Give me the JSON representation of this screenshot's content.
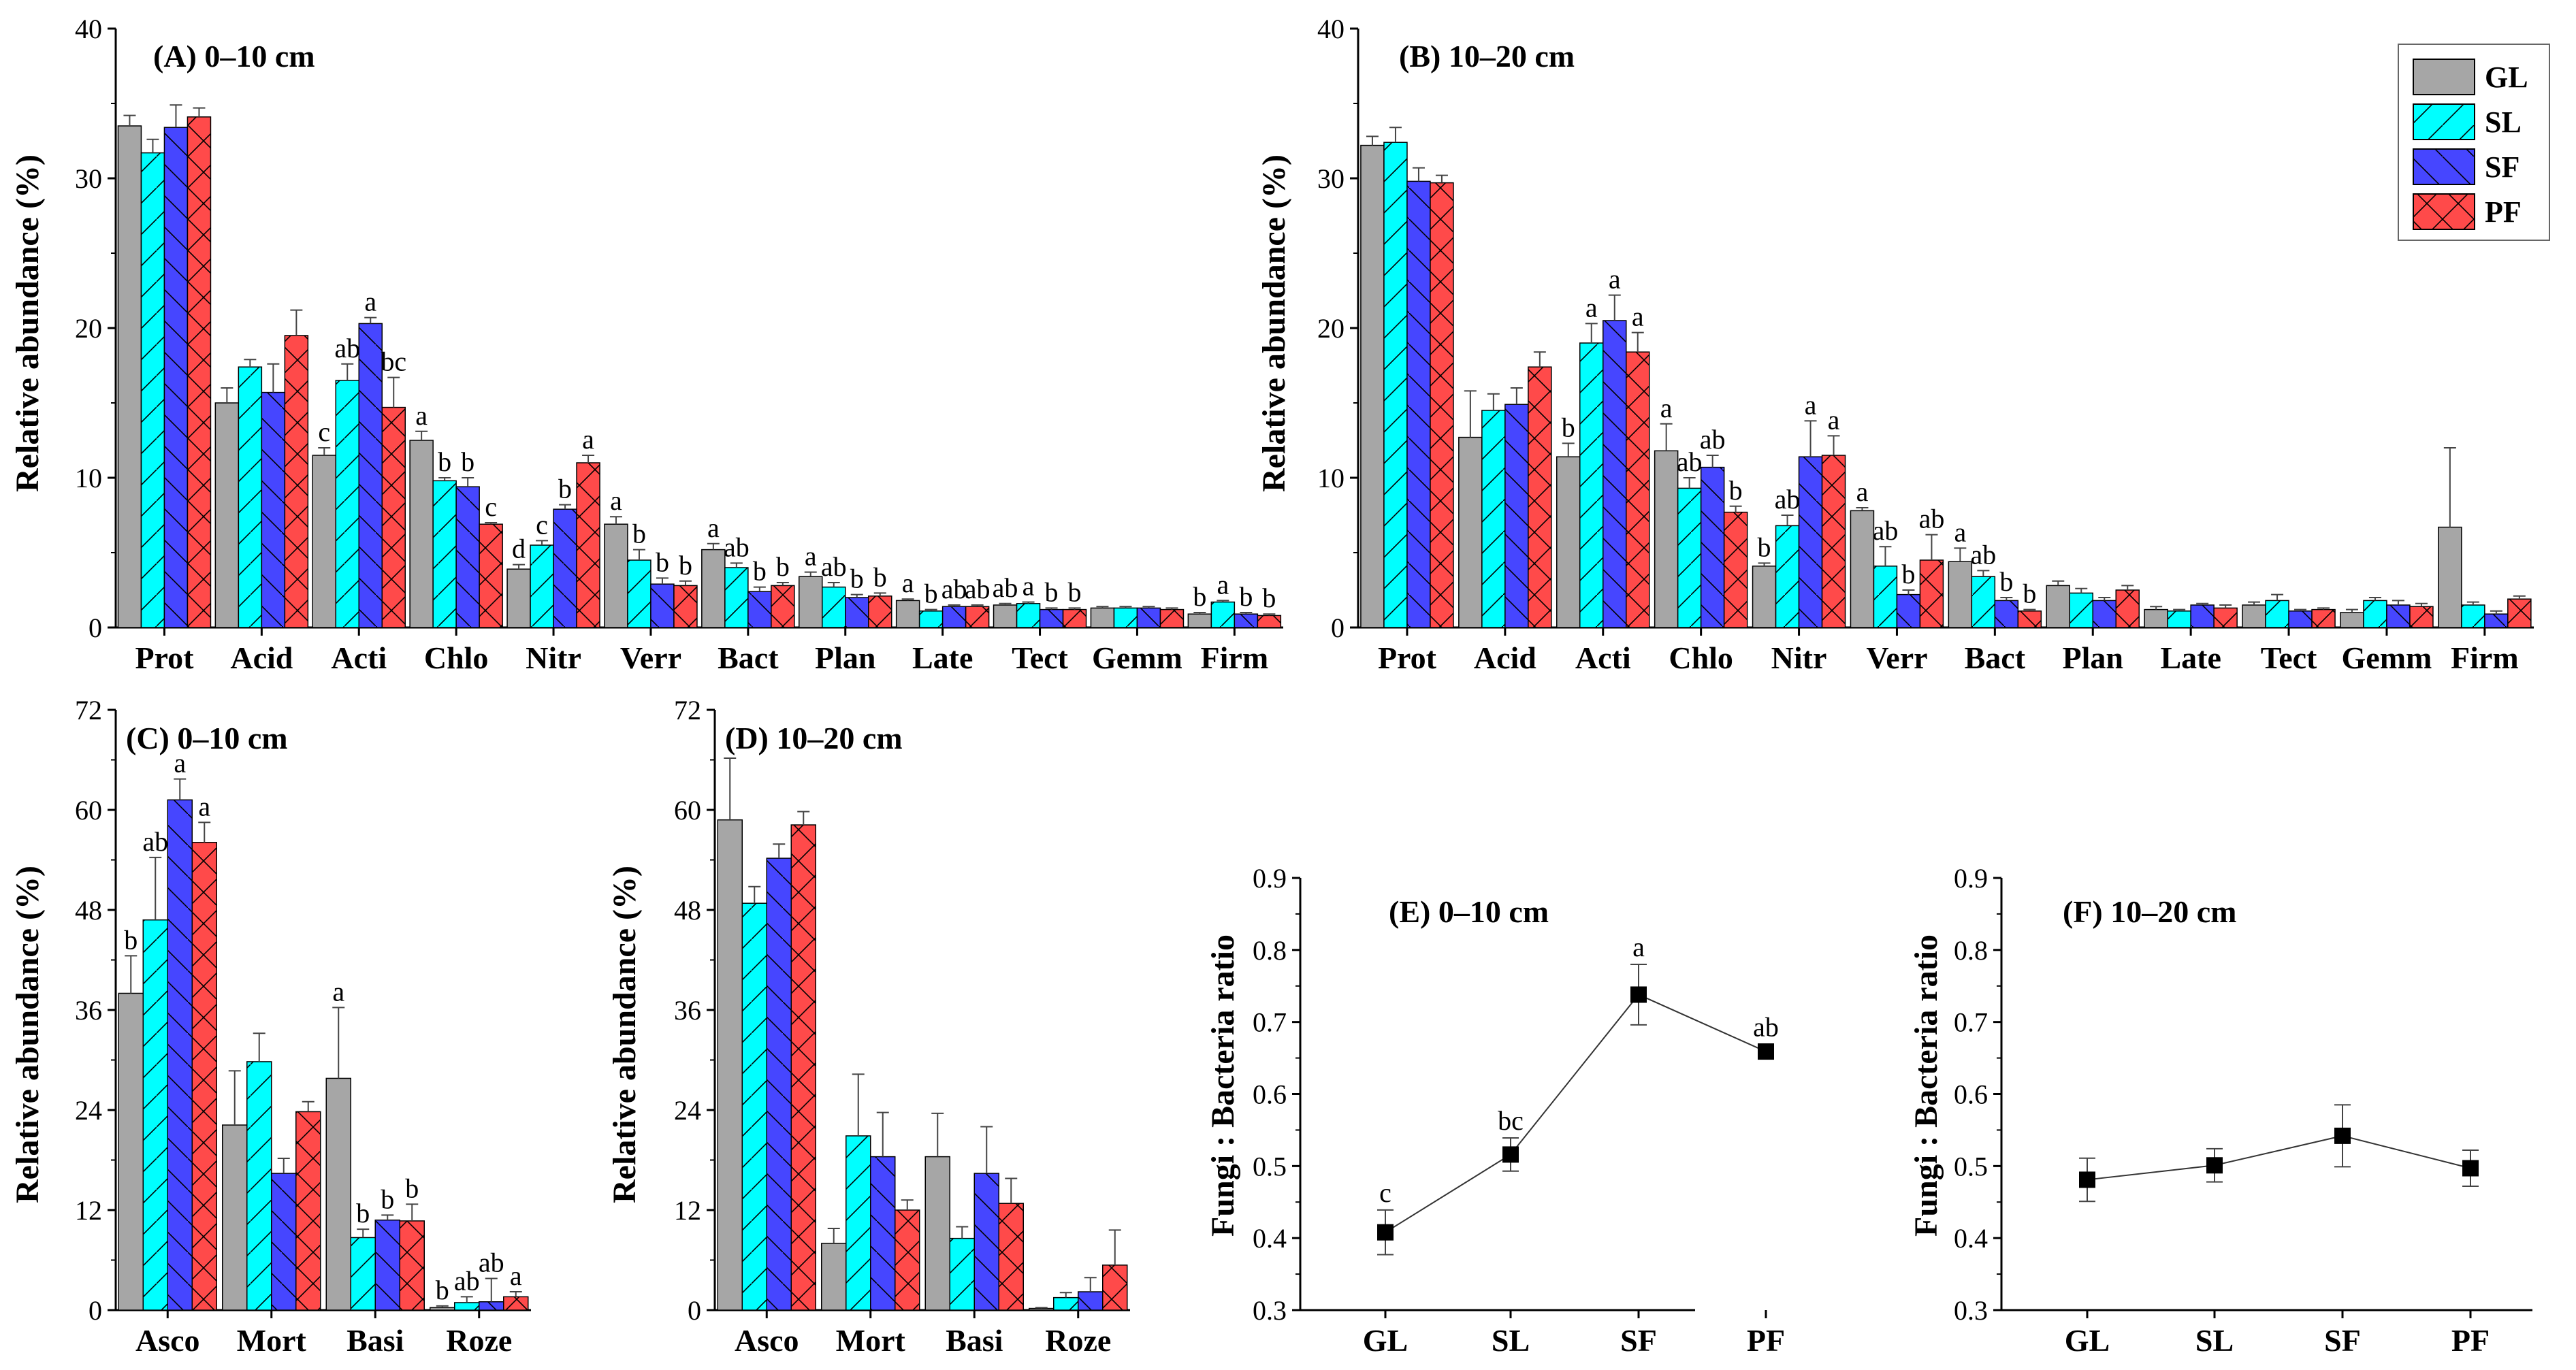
{
  "colors": {
    "GL": "#a6a6a6",
    "SL": "#00ffff",
    "SF": "#4646ff",
    "PF": "#ff4a4a",
    "axis": "#000000",
    "error": "#444444"
  },
  "legend": {
    "items": [
      "GL",
      "SL",
      "SF",
      "PF"
    ]
  },
  "chart_data": [
    {
      "id": "A",
      "type": "bar",
      "title": "(A) 0–10 cm",
      "ylabel": "Relative abundance (%)",
      "xlabel": "",
      "ylim": [
        0,
        40
      ],
      "yticks": [
        "0",
        "10",
        "20",
        "30",
        "40"
      ],
      "categories": [
        "Prot",
        "Acid",
        "Acti",
        "Chlo",
        "Nitr",
        "Verr",
        "Bact",
        "Plan",
        "Late",
        "Tect",
        "Gemm",
        "Firm"
      ],
      "series": [
        {
          "name": "GL",
          "values": [
            33.5,
            15.0,
            11.5,
            12.5,
            3.9,
            6.9,
            5.2,
            3.4,
            1.8,
            1.5,
            1.3,
            0.9
          ],
          "errors": [
            0.7,
            1.0,
            0.5,
            0.6,
            0.3,
            0.5,
            0.4,
            0.3,
            0.1,
            0.1,
            0.1,
            0.1
          ]
        },
        {
          "name": "SL",
          "values": [
            31.7,
            17.4,
            16.5,
            9.8,
            5.5,
            4.5,
            4.0,
            2.7,
            1.1,
            1.6,
            1.3,
            1.7
          ],
          "errors": [
            0.9,
            0.5,
            1.1,
            0.2,
            0.3,
            0.7,
            0.3,
            0.3,
            0.1,
            0.1,
            0.1,
            0.1
          ]
        },
        {
          "name": "SF",
          "values": [
            33.4,
            15.7,
            20.3,
            9.4,
            7.9,
            2.9,
            2.4,
            2.0,
            1.4,
            1.2,
            1.3,
            0.9
          ],
          "errors": [
            1.5,
            1.9,
            0.4,
            0.6,
            0.3,
            0.4,
            0.3,
            0.2,
            0.1,
            0.1,
            0.1,
            0.1
          ]
        },
        {
          "name": "PF",
          "values": [
            34.1,
            19.5,
            14.7,
            6.9,
            11.0,
            2.8,
            2.8,
            2.1,
            1.4,
            1.2,
            1.2,
            0.8
          ],
          "errors": [
            0.6,
            1.7,
            2.0,
            0.1,
            0.5,
            0.3,
            0.2,
            0.2,
            0.1,
            0.1,
            0.1,
            0.1
          ]
        }
      ],
      "letters": [
        [
          "",
          "",
          "",
          ""
        ],
        [
          "",
          "",
          "",
          ""
        ],
        [
          "c",
          "ab",
          "a",
          "bc"
        ],
        [
          "a",
          "b",
          "b",
          "c"
        ],
        [
          "d",
          "c",
          "b",
          "a"
        ],
        [
          "a",
          "b",
          "b",
          "b"
        ],
        [
          "a",
          "ab",
          "b",
          "b"
        ],
        [
          "a",
          "ab",
          "b",
          "b"
        ],
        [
          "a",
          "b",
          "ab",
          "ab"
        ],
        [
          "ab",
          "a",
          "b",
          "b"
        ],
        [
          "",
          "",
          "",
          ""
        ],
        [
          "b",
          "a",
          "b",
          "b"
        ]
      ]
    },
    {
      "id": "B",
      "type": "bar",
      "title": "(B) 10–20 cm",
      "ylabel": "Relative abundance (%)",
      "xlabel": "",
      "ylim": [
        0,
        40
      ],
      "yticks": [
        "0",
        "10",
        "20",
        "30",
        "40"
      ],
      "categories": [
        "Prot",
        "Acid",
        "Acti",
        "Chlo",
        "Nitr",
        "Verr",
        "Bact",
        "Plan",
        "Late",
        "Tect",
        "Gemm",
        "Firm"
      ],
      "series": [
        {
          "name": "GL",
          "values": [
            32.2,
            12.7,
            11.4,
            11.8,
            4.1,
            7.8,
            4.4,
            2.8,
            1.2,
            1.5,
            1.0,
            6.7
          ],
          "errors": [
            0.6,
            3.1,
            0.9,
            1.8,
            0.2,
            0.2,
            0.9,
            0.3,
            0.2,
            0.2,
            0.2,
            5.3
          ]
        },
        {
          "name": "SL",
          "values": [
            32.4,
            14.5,
            19.0,
            9.3,
            6.8,
            4.1,
            3.4,
            2.3,
            1.1,
            1.8,
            1.8,
            1.5
          ],
          "errors": [
            1.0,
            1.1,
            1.3,
            0.7,
            0.7,
            1.3,
            0.4,
            0.3,
            0.1,
            0.4,
            0.2,
            0.2
          ]
        },
        {
          "name": "SF",
          "values": [
            29.8,
            14.9,
            20.5,
            10.7,
            11.4,
            2.2,
            1.8,
            1.8,
            1.5,
            1.1,
            1.5,
            0.9
          ],
          "errors": [
            0.9,
            1.1,
            1.7,
            0.8,
            2.4,
            0.3,
            0.2,
            0.2,
            0.1,
            0.1,
            0.3,
            0.2
          ]
        },
        {
          "name": "PF",
          "values": [
            29.7,
            17.4,
            18.4,
            7.7,
            11.5,
            4.5,
            1.1,
            2.5,
            1.3,
            1.2,
            1.4,
            1.9
          ],
          "errors": [
            0.5,
            1.0,
            1.3,
            0.4,
            1.3,
            1.7,
            0.1,
            0.3,
            0.2,
            0.1,
            0.2,
            0.2
          ]
        }
      ],
      "letters": [
        [
          "",
          "",
          "",
          ""
        ],
        [
          "",
          "",
          "",
          ""
        ],
        [
          "b",
          "a",
          "a",
          "a"
        ],
        [
          "a",
          "ab",
          "ab",
          "b"
        ],
        [
          "b",
          "ab",
          "a",
          "a"
        ],
        [
          "a",
          "ab",
          "b",
          "ab"
        ],
        [
          "a",
          "ab",
          "b",
          "b"
        ],
        [
          "",
          "",
          "",
          ""
        ],
        [
          "",
          "",
          "",
          ""
        ],
        [
          "",
          "",
          "",
          ""
        ],
        [
          "",
          "",
          "",
          ""
        ],
        [
          "",
          "",
          "",
          ""
        ]
      ]
    },
    {
      "id": "C",
      "type": "bar",
      "title": "(C) 0–10 cm",
      "ylabel": "Relative abundance (%)",
      "xlabel": "",
      "ylim": [
        0,
        72
      ],
      "yticks": [
        "0",
        "12",
        "24",
        "36",
        "48",
        "60",
        "72"
      ],
      "categories": [
        "Asco",
        "Mort",
        "Basi",
        "Roze"
      ],
      "series": [
        {
          "name": "GL",
          "values": [
            38.0,
            22.2,
            27.8,
            0.3
          ],
          "errors": [
            4.5,
            6.5,
            8.5,
            0.2
          ]
        },
        {
          "name": "SL",
          "values": [
            46.8,
            29.8,
            8.7,
            0.9
          ],
          "errors": [
            7.5,
            3.4,
            1.0,
            0.7
          ]
        },
        {
          "name": "SF",
          "values": [
            61.2,
            16.4,
            10.8,
            1.0
          ],
          "errors": [
            2.5,
            1.8,
            0.6,
            2.8
          ]
        },
        {
          "name": "PF",
          "values": [
            56.1,
            23.8,
            10.7,
            1.6
          ],
          "errors": [
            2.4,
            1.2,
            2.0,
            0.6
          ]
        }
      ],
      "letters": [
        [
          "b",
          "ab",
          "a",
          "a"
        ],
        [
          "",
          "",
          "",
          ""
        ],
        [
          "a",
          "b",
          "b",
          "b"
        ],
        [
          "b",
          "ab",
          "ab",
          "a"
        ]
      ]
    },
    {
      "id": "D",
      "type": "bar",
      "title": "(D) 10–20 cm",
      "ylabel": "Relative abundance (%)",
      "xlabel": "",
      "ylim": [
        0,
        72
      ],
      "yticks": [
        "0",
        "12",
        "24",
        "36",
        "48",
        "60",
        "72"
      ],
      "categories": [
        "Asco",
        "Mort",
        "Basi",
        "Roze"
      ],
      "series": [
        {
          "name": "GL",
          "values": [
            58.8,
            8.0,
            18.4,
            0.2
          ],
          "errors": [
            7.4,
            1.8,
            5.2,
            0.1
          ]
        },
        {
          "name": "SL",
          "values": [
            48.8,
            20.9,
            8.6,
            1.5
          ],
          "errors": [
            2.0,
            7.4,
            1.4,
            0.6
          ]
        },
        {
          "name": "SF",
          "values": [
            54.2,
            18.4,
            16.4,
            2.2
          ],
          "errors": [
            1.7,
            5.3,
            5.6,
            1.7
          ]
        },
        {
          "name": "PF",
          "values": [
            58.2,
            12.0,
            12.8,
            5.4
          ],
          "errors": [
            1.6,
            1.2,
            3.0,
            4.2
          ]
        }
      ],
      "letters": [
        [
          "",
          "",
          "",
          ""
        ],
        [
          "",
          "",
          "",
          ""
        ],
        [
          "",
          "",
          "",
          ""
        ],
        [
          "",
          "",
          "",
          ""
        ]
      ]
    },
    {
      "id": "E",
      "type": "line",
      "title": "(E) 0–10 cm",
      "ylabel": "Fungi : Bacteria ratio",
      "xlabel": "",
      "ylim": [
        0.3,
        0.9
      ],
      "yticks": [
        "0.3",
        "0.4",
        "0.5",
        "0.6",
        "0.7",
        "0.8",
        "0.9"
      ],
      "categories": [
        "GL",
        "SL",
        "SF",
        "PF"
      ],
      "values": [
        0.408,
        0.516,
        0.738,
        0.659
      ],
      "errors": [
        0.031,
        0.023,
        0.042,
        0.01
      ],
      "letters": [
        "c",
        "bc",
        "a",
        "ab"
      ]
    },
    {
      "id": "F",
      "type": "line",
      "title": "(F) 10–20 cm",
      "ylabel": "Fungi : Bacteria ratio",
      "xlabel": "",
      "ylim": [
        0.3,
        0.9
      ],
      "yticks": [
        "0.3",
        "0.4",
        "0.5",
        "0.6",
        "0.7",
        "0.8",
        "0.9"
      ],
      "categories": [
        "GL",
        "SL",
        "SF",
        "PF"
      ],
      "values": [
        0.481,
        0.501,
        0.542,
        0.497
      ],
      "errors": [
        0.03,
        0.023,
        0.043,
        0.025
      ],
      "letters": [
        "",
        "",
        "",
        ""
      ]
    }
  ]
}
